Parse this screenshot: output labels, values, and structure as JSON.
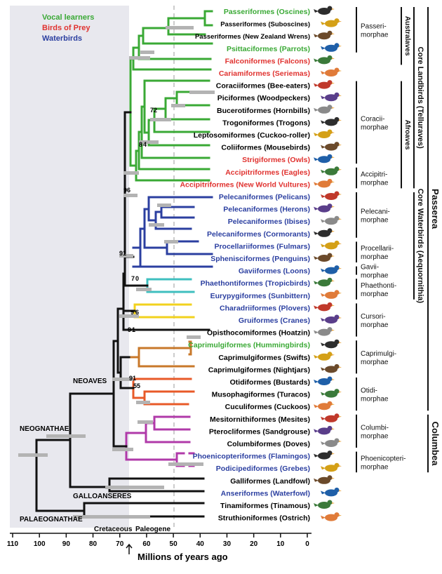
{
  "legend": [
    {
      "label": "Vocal learners",
      "color": "#3aa935"
    },
    {
      "label": "Birds of Prey",
      "color": "#e0322f"
    },
    {
      "label": "Waterbirds",
      "color": "#2b3fa0"
    }
  ],
  "taxa": [
    {
      "name": "Passeriformes (Oscines)",
      "color": "#3aa935"
    },
    {
      "name": "Passeriformes (Suboscines)",
      "color": "#000000"
    },
    {
      "name": "Passeriformes (New Zealand Wrens)",
      "color": "#000000"
    },
    {
      "name": "Psittaciformes (Parrots)",
      "color": "#3aa935"
    },
    {
      "name": "Falconiformes (Falcons)",
      "color": "#e0322f"
    },
    {
      "name": "Cariamiformes (Seriemas)",
      "color": "#e0322f"
    },
    {
      "name": "Coraciiformes (Bee-eaters)",
      "color": "#000000"
    },
    {
      "name": "Piciformes (Woodpeckers)",
      "color": "#000000"
    },
    {
      "name": "Bucerotiformes (Hornbills)",
      "color": "#000000"
    },
    {
      "name": "Trogoniformes (Trogons)",
      "color": "#000000"
    },
    {
      "name": "Leptosomiformes (Cuckoo-roller)",
      "color": "#000000"
    },
    {
      "name": "Coliiformes (Mousebirds)",
      "color": "#000000"
    },
    {
      "name": "Strigiformes (Owls)",
      "color": "#e0322f"
    },
    {
      "name": "Accipitriformes (Eagles)",
      "color": "#e0322f"
    },
    {
      "name": "Accipitriformes (New World Vultures)",
      "color": "#e0322f"
    },
    {
      "name": "Pelecaniformes (Pelicans)",
      "color": "#2b3fa0"
    },
    {
      "name": "Pelecaniformes (Herons)",
      "color": "#2b3fa0"
    },
    {
      "name": "Pelecaniformes (Ibises)",
      "color": "#2b3fa0"
    },
    {
      "name": "Pelecaniformes (Cormorants)",
      "color": "#2b3fa0"
    },
    {
      "name": "Procellariiformes (Fulmars)",
      "color": "#2b3fa0"
    },
    {
      "name": "Sphenisciformes (Penguins)",
      "color": "#2b3fa0"
    },
    {
      "name": "Gaviiformes (Loons)",
      "color": "#2b3fa0"
    },
    {
      "name": "Phaethontiformes (Tropicbirds)",
      "color": "#2b3fa0"
    },
    {
      "name": "Eurypygiformes (Sunbittern)",
      "color": "#2b3fa0"
    },
    {
      "name": "Charadriiformes (Plovers)",
      "color": "#2b3fa0"
    },
    {
      "name": "Gruiformes (Cranes)",
      "color": "#2b3fa0"
    },
    {
      "name": "Opisthocomiformes (Hoatzin)",
      "color": "#000000"
    },
    {
      "name": "Caprimulgiformes (Hummingbirds)",
      "color": "#3aa935"
    },
    {
      "name": "Caprimulgiformes (Swifts)",
      "color": "#000000"
    },
    {
      "name": "Caprimulgiformes (Nightjars)",
      "color": "#000000"
    },
    {
      "name": "Otidiformes (Bustards)",
      "color": "#000000"
    },
    {
      "name": "Musophagiformes (Turacos)",
      "color": "#000000"
    },
    {
      "name": "Cuculiformes (Cuckoos)",
      "color": "#000000"
    },
    {
      "name": "Mesitornithiformes (Mesites)",
      "color": "#000000"
    },
    {
      "name": "Pterocliformes (Sandgrouse)",
      "color": "#000000"
    },
    {
      "name": "Columbiformes (Doves)",
      "color": "#000000"
    },
    {
      "name": "Phoenicopteriformes (Flamingos)",
      "color": "#2b3fa0"
    },
    {
      "name": "Podicipediformes (Grebes)",
      "color": "#2b3fa0"
    },
    {
      "name": "Galliformes (Landfowl)",
      "color": "#000000"
    },
    {
      "name": "Anseriformes (Waterfowl)",
      "color": "#2b3fa0"
    },
    {
      "name": "Tinamiformes (Tinamous)",
      "color": "#000000"
    },
    {
      "name": "Struthioniformes (Ostrich)",
      "color": "#000000"
    }
  ],
  "morphae": [
    {
      "label": "Passeri-\nmorphae"
    },
    {
      "label": "Coracii-\nmorphae"
    },
    {
      "label": "Accipitri-\nmorphae"
    },
    {
      "label": "Pelecani-\nmorphae"
    },
    {
      "label": "Procellarii-\nmorphae"
    },
    {
      "label": "Gavii-\nmorphae"
    },
    {
      "label": "Phaethonti-\nmorphae"
    },
    {
      "label": "Cursori-\nmorphae"
    },
    {
      "label": "Caprimulgi-\nmorphae"
    },
    {
      "label": "Otidi-\nmorphae"
    },
    {
      "label": "Columbi-\nmorphae"
    },
    {
      "label": "Phoenicopteri-\nmorphae"
    }
  ],
  "groups": [
    {
      "label": "Australaves"
    },
    {
      "label": "Afroaves"
    },
    {
      "label": "Core Landbirds (Telluraves)"
    },
    {
      "label": "Core Waterbirds (Aequornithia)"
    },
    {
      "label": "Passerea"
    },
    {
      "label": "Columbea"
    }
  ],
  "clade_labels": {
    "neoaves": "NEOAVES",
    "neognathae": "NEOGNATHAE",
    "galloanseres": "GALLOANSERES",
    "palaeognathae": "PALAEOGNATHAE"
  },
  "support_values": [
    "72",
    "8",
    "4",
    "96",
    "91",
    "7",
    "0",
    "9",
    "6",
    "9",
    "1",
    "91",
    "55"
  ],
  "axis": {
    "ticks": [
      "110",
      "100",
      "90",
      "80",
      "70",
      "60",
      "50",
      "40",
      "30",
      "20",
      "10",
      "0"
    ],
    "title": "Millions of years ago",
    "period_left": "Cretaceous",
    "period_right": "Paleogene"
  }
}
